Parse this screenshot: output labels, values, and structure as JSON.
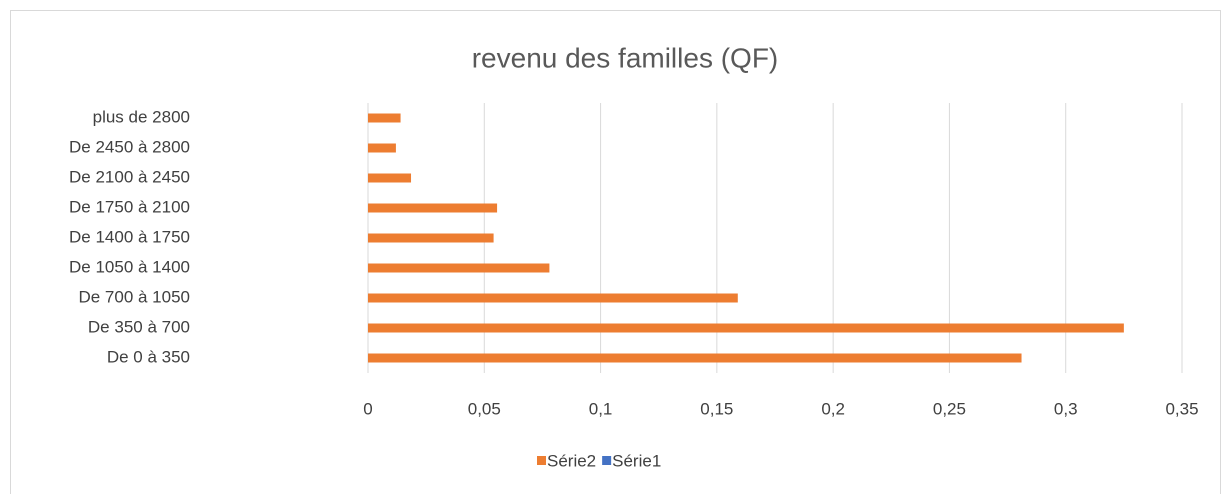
{
  "chart_data": {
    "type": "barh",
    "title": "revenu des familles (QF)",
    "categories": [
      "De 0 à 350",
      "De 350 à 700",
      "De 700 à 1050",
      "De 1050 à 1400",
      "De 1400 à 1750",
      "De 1750 à 2100",
      "De 2100 à 2450",
      "De 2450 à 2800",
      "plus de 2800"
    ],
    "series": [
      {
        "name": "Série2",
        "color": "#ED7D31",
        "values": [
          0.281,
          0.325,
          0.159,
          0.078,
          0.054,
          0.0555,
          0.0185,
          0.012,
          0.014
        ]
      },
      {
        "name": "Série1",
        "color": "#4472C4",
        "values": [
          null,
          null,
          null,
          null,
          null,
          null,
          null,
          null,
          null
        ]
      }
    ],
    "xlim": [
      0,
      0.35
    ],
    "xticks": [
      0,
      {
        "value": 0.05,
        "label": "0,05"
      },
      {
        "value": 0.1,
        "label": "0,1"
      },
      {
        "value": 0.15,
        "label": "0,15"
      },
      {
        "value": 0.2,
        "label": "0,2"
      },
      {
        "value": 0.25,
        "label": "0,25"
      },
      {
        "value": 0.3,
        "label": "0,3"
      },
      {
        "value": 0.35,
        "label": "0,35"
      }
    ],
    "grid": true,
    "legend": "bottom"
  }
}
